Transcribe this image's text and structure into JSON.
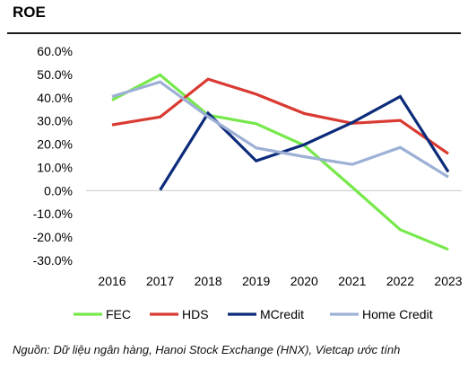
{
  "header": {
    "title": "ROE"
  },
  "chart_data": {
    "type": "line",
    "x": [
      "2016",
      "2017",
      "2018",
      "2019",
      "2020",
      "2021",
      "2022",
      "2023"
    ],
    "y_ticks": [
      "60.0%",
      "50.0%",
      "40.0%",
      "30.0%",
      "20.0%",
      "10.0%",
      "0.0%",
      "-10.0%",
      "-20.0%",
      "-30.0%"
    ],
    "ylim": [
      -30,
      60
    ],
    "grid": false,
    "legend_position": "bottom",
    "series": [
      {
        "name": "FEC",
        "color": "#77e84b",
        "values": [
          39.0,
          49.8,
          32.5,
          28.8,
          19.5,
          1.5,
          -16.8,
          -25.3
        ]
      },
      {
        "name": "HDS",
        "color": "#d93a32",
        "values": [
          28.3,
          31.7,
          48.0,
          41.5,
          33.2,
          29.0,
          30.2,
          15.9
        ]
      },
      {
        "name": "MCredit",
        "color": "#0c2b7a",
        "values": [
          null,
          0.3,
          33.3,
          12.8,
          19.8,
          29.3,
          40.5,
          8.1
        ]
      },
      {
        "name": "Home Credit",
        "color": "#9db0d6",
        "values": [
          40.5,
          46.8,
          31.8,
          18.4,
          14.6,
          11.3,
          18.6,
          5.9
        ]
      }
    ]
  },
  "footer": {
    "source": "Nguồn: Dữ liệu ngân hàng, Hanoi Stock Exchange (HNX), Vietcap ước tính"
  }
}
